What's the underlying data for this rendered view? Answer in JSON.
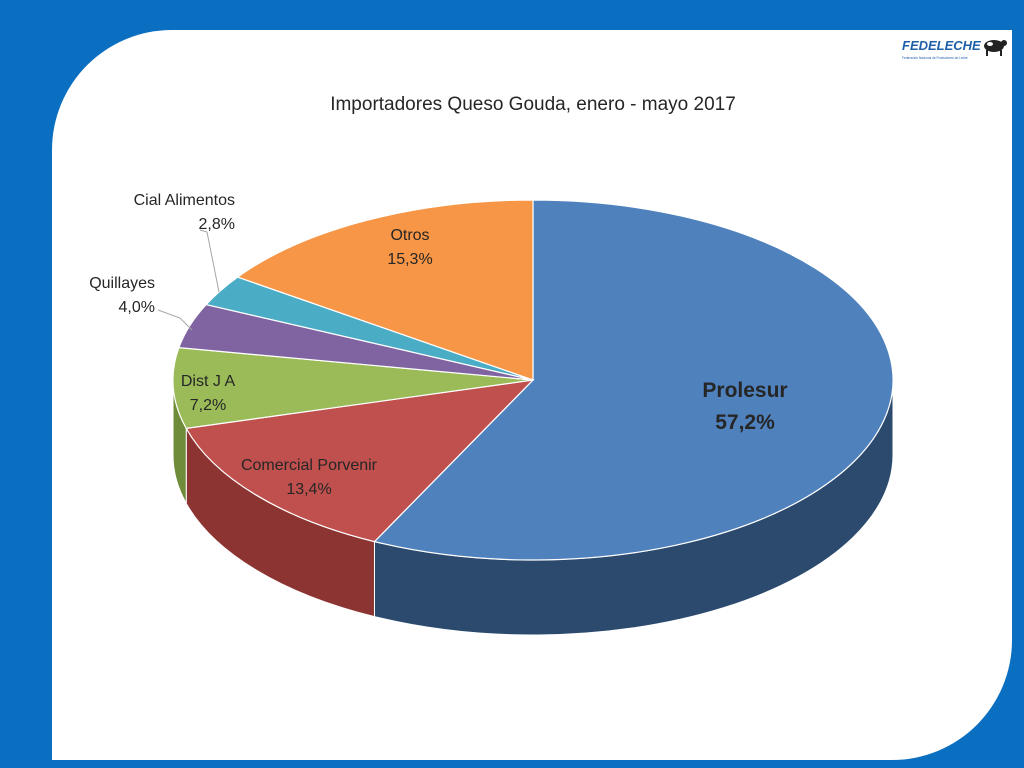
{
  "logo": {
    "text": "FEDELECHE",
    "subtitle": "Federación Nacional de Productores de Leche"
  },
  "chart_data": {
    "type": "pie",
    "title": "Importadores Queso Gouda, enero - mayo 2017",
    "slices": [
      {
        "label": "Prolesur",
        "value": 57.2,
        "value_label": "57,2%",
        "color": "#4f81bd",
        "side_color": "#2c4a6e"
      },
      {
        "label": "Comercial Porvenir",
        "value": 13.4,
        "value_label": "13,4%",
        "color": "#c0504d",
        "side_color": "#8c3431"
      },
      {
        "label": "Dist J A",
        "value": 7.2,
        "value_label": "7,2%",
        "color": "#9bbb59",
        "side_color": "#6f8c3b"
      },
      {
        "label": "Quillayes",
        "value": 4.0,
        "value_label": "4,0%",
        "color": "#8064a2",
        "side_color": "#5a4575"
      },
      {
        "label": "Cial Alimentos",
        "value": 2.8,
        "value_label": "2,8%",
        "color": "#4bacc6",
        "side_color": "#2f7d92"
      },
      {
        "label": "Otros",
        "value": 15.3,
        "value_label": "15,3%",
        "color": "#f79646",
        "side_color": "#b86a2b"
      }
    ],
    "legend": "none",
    "style": "3d"
  }
}
